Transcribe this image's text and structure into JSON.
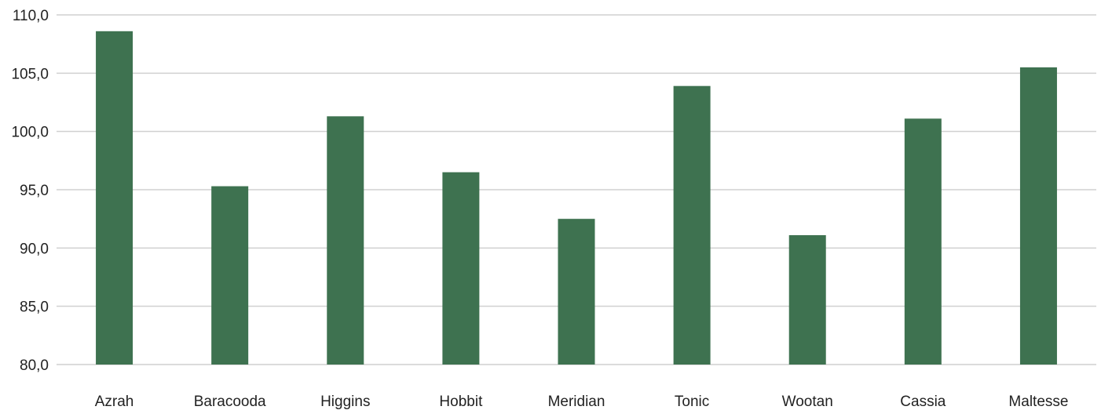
{
  "chart_data": {
    "type": "bar",
    "title": "",
    "xlabel": "",
    "ylabel": "",
    "categories": [
      "Azrah",
      "Baracooda",
      "Higgins",
      "Hobbit",
      "Meridian",
      "Tonic",
      "Wootan",
      "Cassia",
      "Maltesse"
    ],
    "values": [
      108.6,
      95.3,
      101.3,
      96.5,
      92.5,
      103.9,
      91.1,
      101.1,
      105.5
    ],
    "ylim": [
      80,
      110
    ],
    "ytick_labels": [
      "80,0",
      "85,0",
      "90,0",
      "95,0",
      "100,0",
      "105,0",
      "110,0"
    ],
    "grid": true,
    "legend": "none",
    "bar_color": "#3e7250"
  }
}
